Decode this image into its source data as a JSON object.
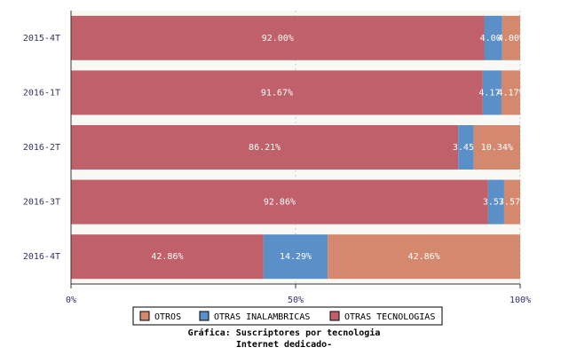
{
  "chart_data": {
    "type": "stacked-bar-horizontal",
    "title": "Gráfica: Suscriptores por tecnologia",
    "subtitle": "Internet dedicado-",
    "categories": [
      "2015-4T",
      "2016-1T",
      "2016-2T",
      "2016-3T",
      "2016-4T"
    ],
    "series": [
      {
        "name": "OTRAS TECNOLOGIAS",
        "color": "#c0606a",
        "values": [
          92.0,
          91.67,
          86.21,
          92.86,
          42.86
        ],
        "value_labels": [
          "92.00%",
          "91.67%",
          "86.21%",
          "92.86%",
          "42.86%"
        ]
      },
      {
        "name": "OTRAS INALAMBRICAS",
        "color": "#5b8fc7",
        "values": [
          4.0,
          4.17,
          3.45,
          3.57,
          14.29
        ],
        "value_labels": [
          "4.00%",
          "4.17%",
          "3.45%",
          "3.57%",
          "14.29%"
        ]
      },
      {
        "name": "OTROS",
        "color": "#d4896e",
        "values": [
          4.0,
          4.17,
          10.34,
          3.57,
          42.86
        ],
        "value_labels": [
          "4.00%",
          "4.17%",
          "10.34%",
          "3.57%",
          "42.86%"
        ]
      }
    ],
    "xlim": [
      0,
      100
    ],
    "xticks": [
      {
        "value": 0,
        "label": "0%"
      },
      {
        "value": 50,
        "label": "50%"
      },
      {
        "value": 100,
        "label": "100%"
      }
    ],
    "grid": true
  }
}
